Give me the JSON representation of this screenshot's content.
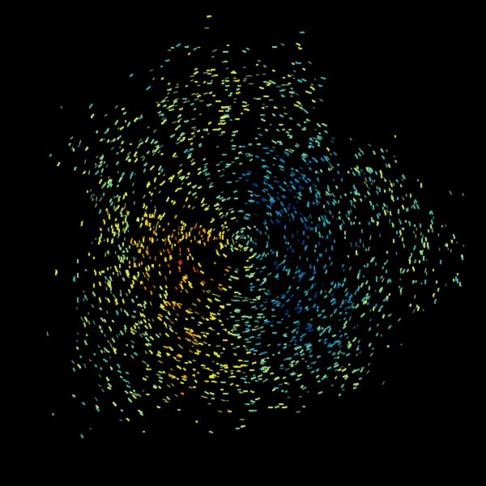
{
  "image": {
    "kind": "radar-ppi-sweep",
    "background": "#000000",
    "colormap": [
      "#0b3f86",
      "#1f86b8",
      "#49b8b0",
      "#8fd99a",
      "#d6ef6a",
      "#f0e63a",
      "#eca01e",
      "#d2440e"
    ],
    "center_marker_color": "#000000"
  }
}
